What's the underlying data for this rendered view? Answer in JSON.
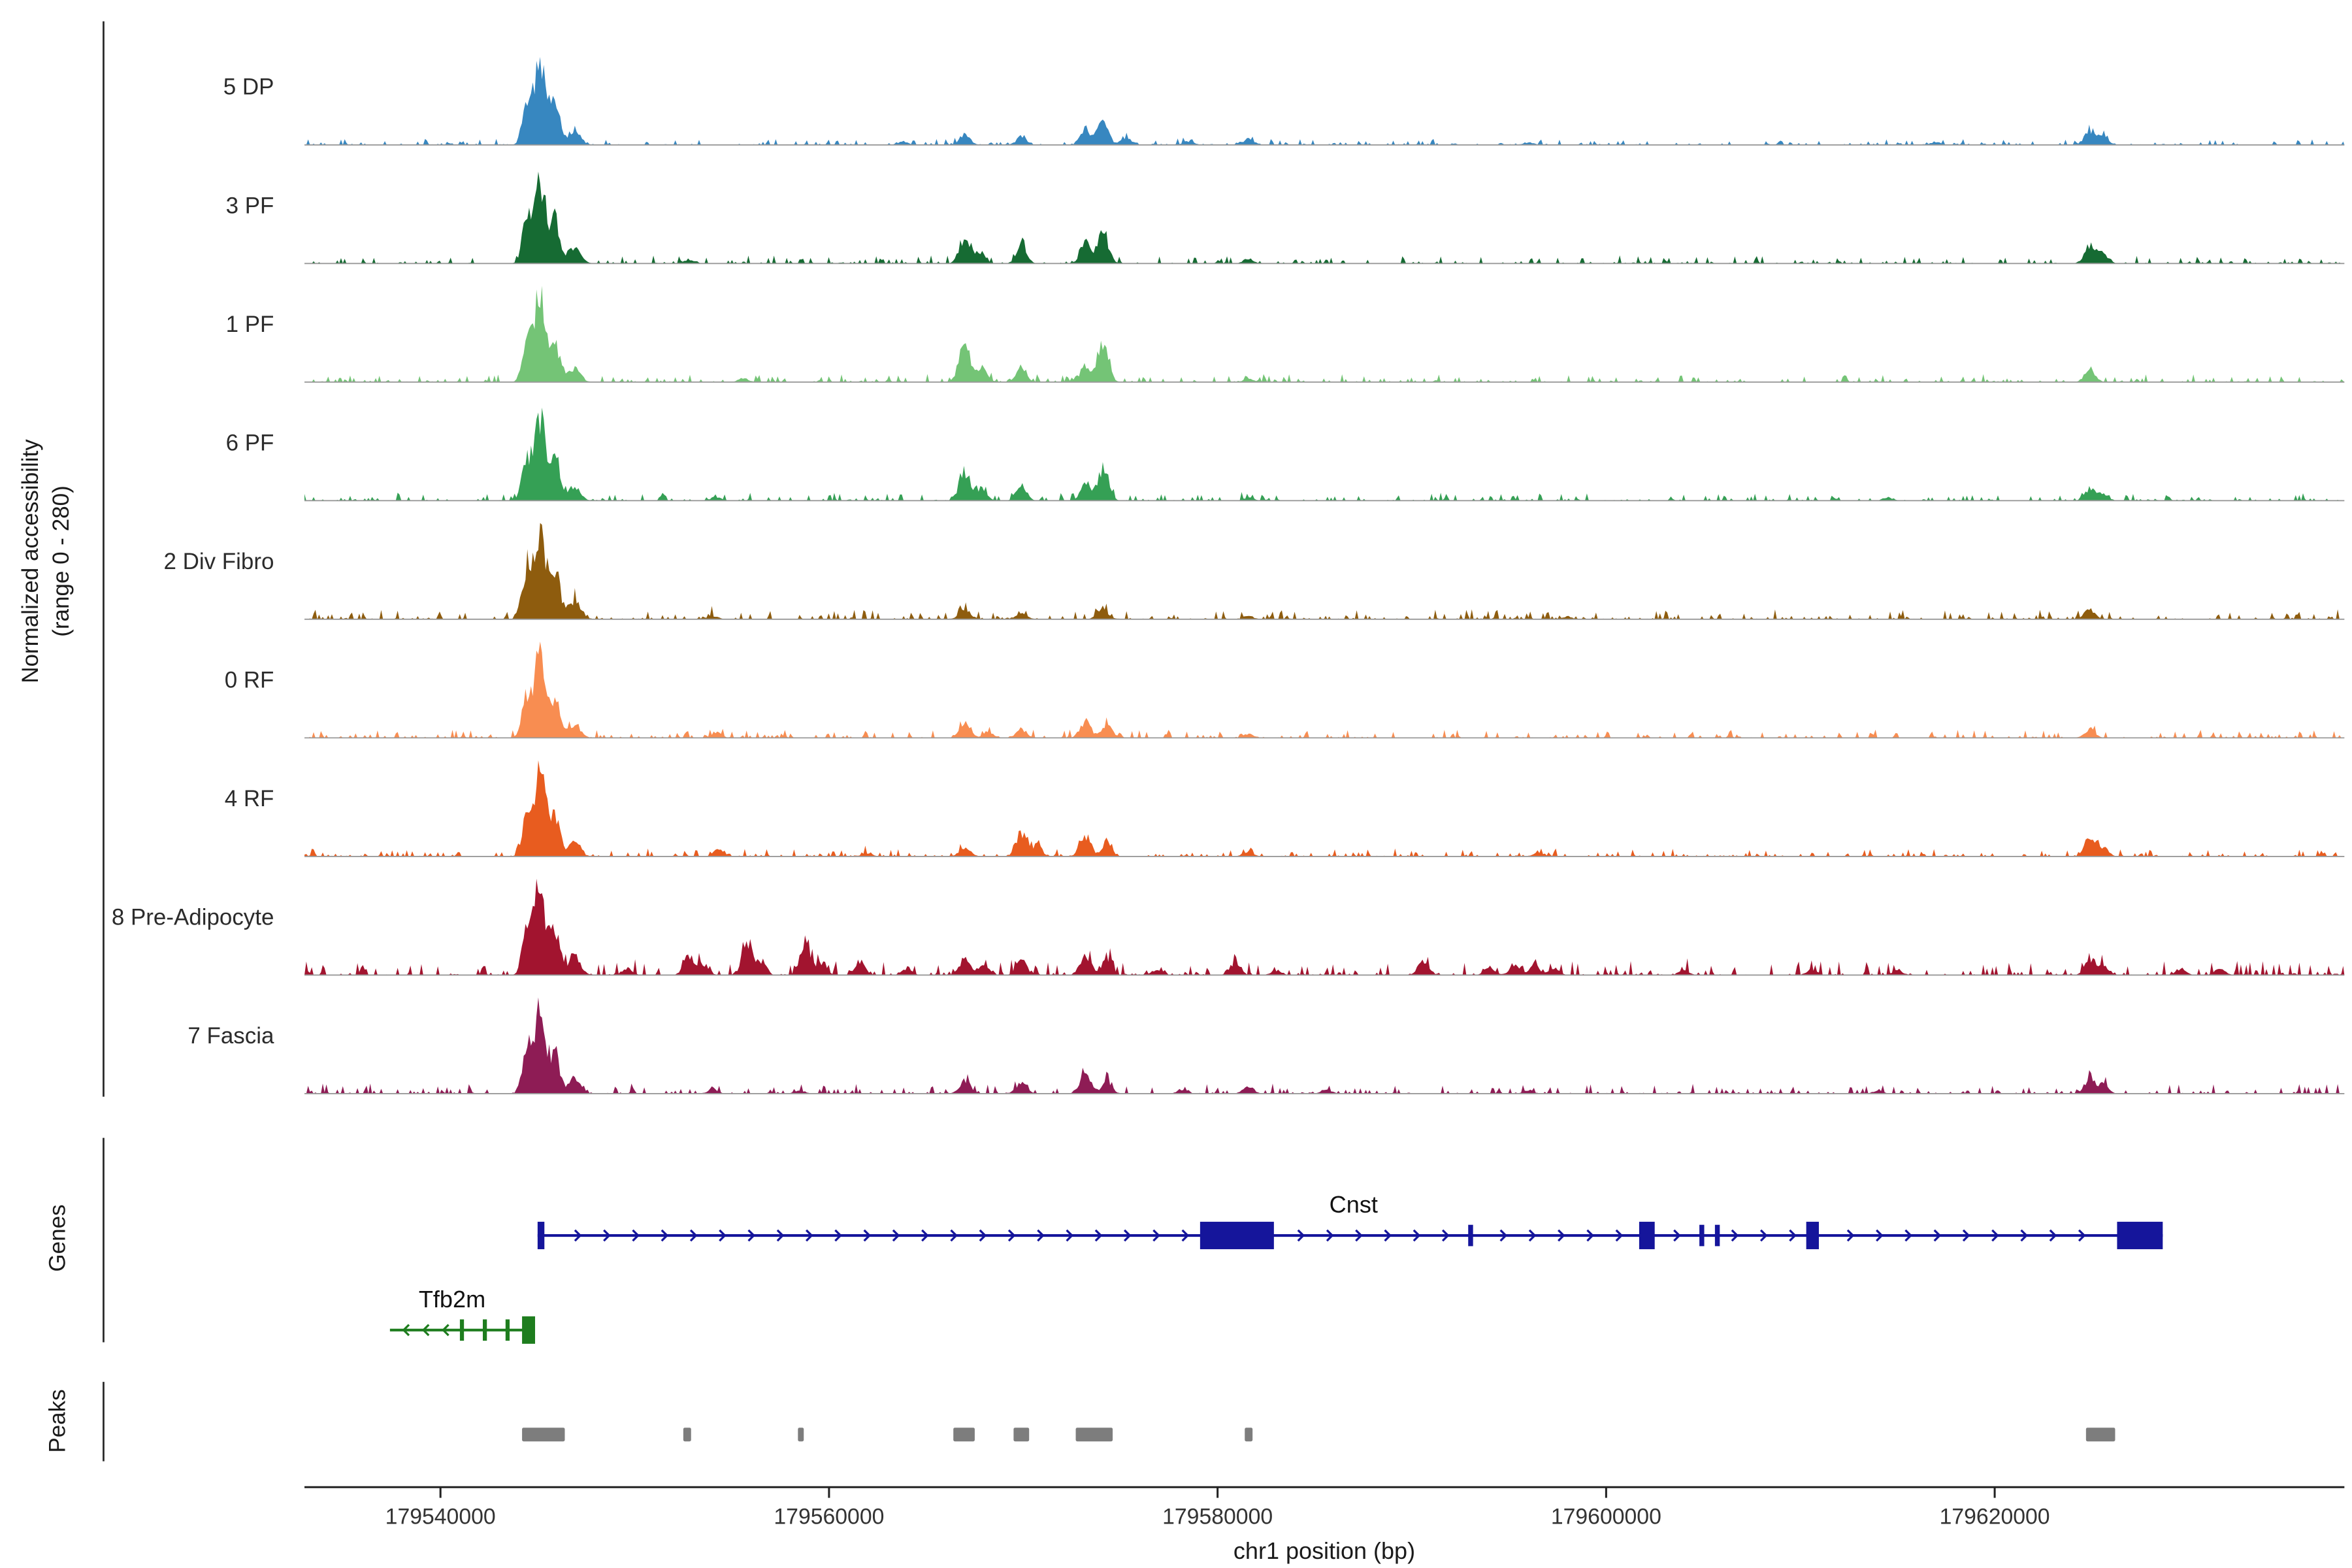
{
  "y_axis": {
    "line1": "Normalized accessibility",
    "line2": "(range 0 - 280)"
  },
  "sections": {
    "genes_label": "Genes",
    "peaks_label": "Peaks"
  },
  "x_axis": {
    "title": "chr1 position (bp)",
    "tick_values": [
      179540000,
      179560000,
      179580000,
      179600000,
      179620000
    ],
    "tick_labels": [
      "179540000",
      "179560000",
      "179580000",
      "179600000",
      "179620000"
    ]
  },
  "chart_data": {
    "type": "area",
    "title": "",
    "x_range_bp": [
      179533000,
      179638000
    ],
    "y_range_per_track": [
      0,
      280
    ],
    "legend": "none",
    "tracks": [
      {
        "name": "5 DP",
        "color": "#3787c0",
        "noise": 3,
        "peaks": [
          [
            179544400,
            110,
            220
          ],
          [
            179545100,
            272,
            300
          ],
          [
            179545900,
            130,
            250
          ],
          [
            179546900,
            50,
            300
          ],
          [
            179563800,
            10,
            260
          ],
          [
            179567000,
            30,
            280
          ],
          [
            179569900,
            25,
            260
          ],
          [
            179573200,
            55,
            250
          ],
          [
            179574100,
            70,
            280
          ],
          [
            179575300,
            25,
            250
          ],
          [
            179578500,
            12,
            260
          ],
          [
            179581600,
            20,
            260
          ],
          [
            179596000,
            8,
            260
          ],
          [
            179617000,
            8,
            260
          ],
          [
            179624900,
            45,
            270
          ],
          [
            179625600,
            25,
            250
          ]
        ]
      },
      {
        "name": "3 PF",
        "color": "#166b33",
        "noise": 4,
        "peaks": [
          [
            179544400,
            120,
            220
          ],
          [
            179545100,
            268,
            300
          ],
          [
            179545900,
            135,
            250
          ],
          [
            179546900,
            55,
            300
          ],
          [
            179552800,
            10,
            260
          ],
          [
            179567000,
            85,
            280
          ],
          [
            179567800,
            35,
            250
          ],
          [
            179569900,
            55,
            260
          ],
          [
            179573200,
            70,
            250
          ],
          [
            179574100,
            95,
            280
          ],
          [
            179581600,
            12,
            260
          ],
          [
            179624900,
            60,
            270
          ],
          [
            179625600,
            30,
            250
          ]
        ]
      },
      {
        "name": "1 PF",
        "color": "#74c476",
        "noise": 4,
        "peaks": [
          [
            179544400,
            115,
            220
          ],
          [
            179545100,
            274,
            300
          ],
          [
            179545900,
            120,
            250
          ],
          [
            179546900,
            45,
            300
          ],
          [
            179555600,
            12,
            260
          ],
          [
            179567000,
            115,
            290
          ],
          [
            179567900,
            45,
            250
          ],
          [
            179569900,
            40,
            260
          ],
          [
            179573200,
            55,
            250
          ],
          [
            179574100,
            115,
            280
          ],
          [
            179581600,
            10,
            260
          ],
          [
            179624900,
            40,
            270
          ]
        ]
      },
      {
        "name": "6 PF",
        "color": "#35a055",
        "noise": 4,
        "peaks": [
          [
            179544400,
            118,
            220
          ],
          [
            179545100,
            270,
            300
          ],
          [
            179545900,
            128,
            250
          ],
          [
            179546900,
            48,
            300
          ],
          [
            179554200,
            12,
            260
          ],
          [
            179567000,
            90,
            290
          ],
          [
            179567900,
            35,
            250
          ],
          [
            179569900,
            48,
            260
          ],
          [
            179573200,
            55,
            250
          ],
          [
            179574100,
            100,
            280
          ],
          [
            179581600,
            10,
            260
          ],
          [
            179614500,
            10,
            260
          ],
          [
            179624900,
            38,
            270
          ],
          [
            179625600,
            20,
            250
          ]
        ]
      },
      {
        "name": "2 Div Fibro",
        "color": "#8e5c0e",
        "noise": 5,
        "peaks": [
          [
            179544400,
            140,
            240
          ],
          [
            179545100,
            280,
            320
          ],
          [
            179545900,
            150,
            260
          ],
          [
            179546900,
            60,
            320
          ],
          [
            179554000,
            10,
            260
          ],
          [
            179567000,
            28,
            300
          ],
          [
            179569900,
            22,
            280
          ],
          [
            179574100,
            30,
            300
          ],
          [
            179581600,
            10,
            260
          ],
          [
            179598000,
            8,
            260
          ],
          [
            179624900,
            30,
            270
          ]
        ]
      },
      {
        "name": "0 RF",
        "color": "#f88d51",
        "noise": 4,
        "peaks": [
          [
            179544400,
            118,
            220
          ],
          [
            179545100,
            266,
            300
          ],
          [
            179545900,
            122,
            250
          ],
          [
            179546900,
            45,
            300
          ],
          [
            179554200,
            18,
            260
          ],
          [
            179567000,
            38,
            290
          ],
          [
            179568200,
            20,
            250
          ],
          [
            179569900,
            28,
            260
          ],
          [
            179573200,
            50,
            280
          ],
          [
            179574300,
            45,
            260
          ],
          [
            179581600,
            12,
            260
          ],
          [
            179624900,
            25,
            270
          ]
        ]
      },
      {
        "name": "4 RF",
        "color": "#e85c1f",
        "noise": 4,
        "peaks": [
          [
            179544400,
            112,
            220
          ],
          [
            179545100,
            268,
            300
          ],
          [
            179545900,
            118,
            250
          ],
          [
            179546900,
            42,
            300
          ],
          [
            179554300,
            22,
            260
          ],
          [
            179562000,
            10,
            260
          ],
          [
            179567000,
            28,
            280
          ],
          [
            179569900,
            75,
            270
          ],
          [
            179570700,
            35,
            250
          ],
          [
            179573200,
            65,
            280
          ],
          [
            179574300,
            45,
            250
          ],
          [
            179581600,
            12,
            260
          ],
          [
            179596500,
            12,
            260
          ],
          [
            179624900,
            55,
            270
          ],
          [
            179625600,
            28,
            250
          ]
        ]
      },
      {
        "name": "8 Pre-Adipocyte",
        "color": "#a2142f",
        "noise": 7,
        "peaks": [
          [
            179544400,
            130,
            220
          ],
          [
            179545100,
            278,
            300
          ],
          [
            179545900,
            140,
            250
          ],
          [
            179546900,
            58,
            300
          ],
          [
            179549600,
            22,
            260
          ],
          [
            179552800,
            58,
            270
          ],
          [
            179553600,
            28,
            250
          ],
          [
            179555800,
            105,
            270
          ],
          [
            179556500,
            40,
            250
          ],
          [
            179558800,
            92,
            270
          ],
          [
            179559600,
            38,
            250
          ],
          [
            179561600,
            42,
            270
          ],
          [
            179564000,
            18,
            260
          ],
          [
            179567000,
            52,
            280
          ],
          [
            179568000,
            28,
            250
          ],
          [
            179569900,
            50,
            260
          ],
          [
            179573200,
            62,
            280
          ],
          [
            179574300,
            48,
            250
          ],
          [
            179576900,
            18,
            260
          ],
          [
            179580900,
            38,
            270
          ],
          [
            179583000,
            14,
            260
          ],
          [
            179590600,
            42,
            270
          ],
          [
            179594000,
            26,
            260
          ],
          [
            179595300,
            30,
            260
          ],
          [
            179596300,
            32,
            260
          ],
          [
            179597300,
            24,
            260
          ],
          [
            179604000,
            14,
            260
          ],
          [
            179610600,
            18,
            260
          ],
          [
            179615000,
            14,
            260
          ],
          [
            179624900,
            48,
            270
          ],
          [
            179625600,
            28,
            250
          ],
          [
            179629600,
            18,
            260
          ],
          [
            179631600,
            22,
            260
          ]
        ]
      },
      {
        "name": "7 Fascia",
        "color": "#8e1c55",
        "noise": 5,
        "peaks": [
          [
            179544400,
            120,
            220
          ],
          [
            179545100,
            270,
            300
          ],
          [
            179545900,
            125,
            250
          ],
          [
            179546900,
            48,
            300
          ],
          [
            179554000,
            12,
            260
          ],
          [
            179558500,
            10,
            260
          ],
          [
            179567000,
            42,
            280
          ],
          [
            179569900,
            32,
            260
          ],
          [
            179573200,
            62,
            280
          ],
          [
            179574300,
            38,
            250
          ],
          [
            179578200,
            12,
            260
          ],
          [
            179581600,
            22,
            270
          ],
          [
            179585600,
            12,
            260
          ],
          [
            179596000,
            10,
            260
          ],
          [
            179614000,
            8,
            260
          ],
          [
            179624900,
            50,
            270
          ],
          [
            179625600,
            28,
            250
          ]
        ]
      }
    ],
    "genes": [
      {
        "name": "Cnst",
        "strand": "+",
        "color": "#15159b",
        "start": 179545000,
        "end": 179628650,
        "label_bp": 179587000,
        "exons": [
          [
            179545000,
            179545350,
            18
          ],
          [
            179579100,
            179582900,
            18
          ],
          [
            179592900,
            179593150,
            14
          ],
          [
            179601700,
            179602500,
            18
          ],
          [
            179604800,
            179605050,
            14
          ],
          [
            179605600,
            179605850,
            14
          ],
          [
            179610300,
            179610950,
            18
          ],
          [
            179626300,
            179628650,
            18
          ]
        ]
      },
      {
        "name": "Tfb2m",
        "strand": "-",
        "color": "#1e7d1e",
        "start": 179537400,
        "end": 179544870,
        "label_bp": 179540600,
        "exons": [
          [
            179544200,
            179544870,
            18
          ],
          [
            179543350,
            179543560,
            14
          ],
          [
            179542180,
            179542390,
            14
          ],
          [
            179541000,
            179541210,
            14
          ]
        ]
      }
    ],
    "peaks": [
      [
        179544200,
        179546400
      ],
      [
        179552500,
        179552900
      ],
      [
        179558400,
        179558700
      ],
      [
        179566400,
        179567500
      ],
      [
        179569500,
        179570300
      ],
      [
        179572700,
        179574600
      ],
      [
        179581400,
        179581800
      ],
      [
        179624700,
        179626200
      ]
    ]
  }
}
